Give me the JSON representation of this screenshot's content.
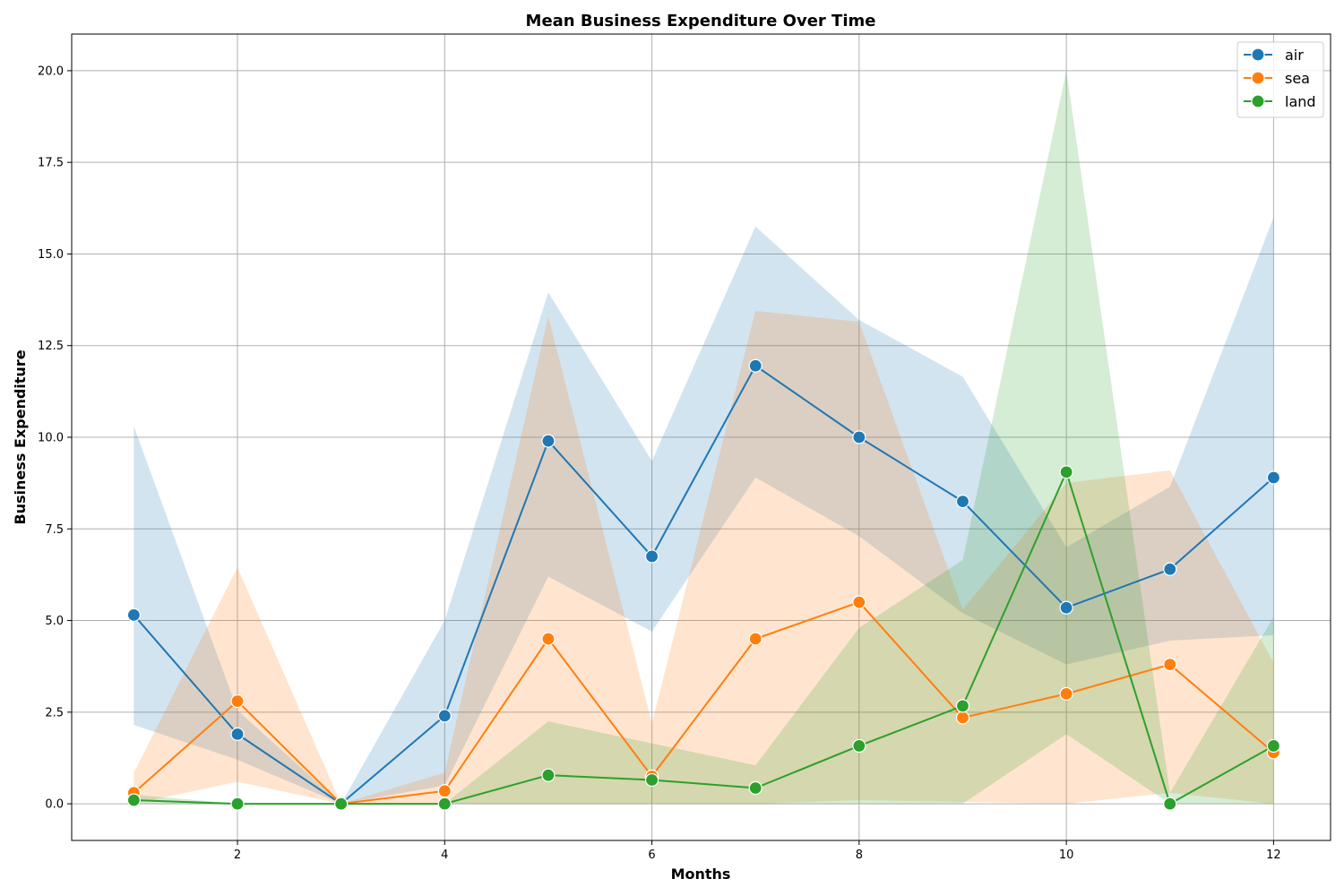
{
  "chart_data": {
    "type": "line",
    "title": "Mean Business Expenditure Over Time",
    "xlabel": "Months",
    "ylabel": "Business Expenditure",
    "xlim": [
      0.4,
      12.55
    ],
    "ylim": [
      -1.0,
      21.0
    ],
    "x_ticks": [
      2,
      4,
      6,
      8,
      10,
      12
    ],
    "y_ticks": [
      0.0,
      2.5,
      5.0,
      7.5,
      10.0,
      12.5,
      15.0,
      17.5,
      20.0
    ],
    "grid": true,
    "legend_position": "top-right",
    "x": [
      1,
      2,
      3,
      4,
      5,
      6,
      7,
      8,
      9,
      10,
      11,
      12
    ],
    "series": [
      {
        "name": "air",
        "color": "#1f77b4",
        "values": [
          5.15,
          1.9,
          0.0,
          2.4,
          9.9,
          6.75,
          11.95,
          10.0,
          8.25,
          5.35,
          6.4,
          8.9
        ],
        "ci_lower": [
          2.15,
          1.2,
          0.0,
          0.5,
          6.2,
          4.7,
          8.9,
          7.3,
          5.2,
          3.8,
          4.45,
          4.6
        ],
        "ci_upper": [
          10.3,
          2.55,
          0.0,
          5.0,
          13.95,
          9.35,
          15.75,
          13.2,
          11.65,
          7.0,
          8.65,
          16.0
        ]
      },
      {
        "name": "sea",
        "color": "#ff7f0e",
        "values": [
          0.3,
          2.8,
          0.0,
          0.35,
          4.5,
          0.75,
          4.5,
          5.5,
          2.35,
          3.0,
          3.8,
          1.4
        ],
        "ci_lower": [
          0.0,
          0.6,
          0.0,
          0.0,
          0.0,
          0.0,
          0.0,
          0.1,
          0.05,
          0.0,
          0.3,
          0.0
        ],
        "ci_upper": [
          0.85,
          6.45,
          0.0,
          0.85,
          13.3,
          2.2,
          13.45,
          13.15,
          5.3,
          8.75,
          9.1,
          3.85
        ]
      },
      {
        "name": "land",
        "color": "#2ca02c",
        "values": [
          0.1,
          0.0,
          0.0,
          0.0,
          0.78,
          0.65,
          0.43,
          1.58,
          2.67,
          9.05,
          0.0,
          1.58
        ],
        "ci_lower": [
          0.0,
          0.0,
          0.0,
          0.0,
          0.0,
          0.0,
          0.0,
          0.0,
          0.0,
          1.9,
          0.0,
          0.0
        ],
        "ci_upper": [
          0.25,
          0.0,
          0.0,
          0.0,
          2.25,
          1.65,
          1.05,
          4.8,
          6.65,
          20.0,
          0.3,
          5.1
        ]
      }
    ]
  }
}
